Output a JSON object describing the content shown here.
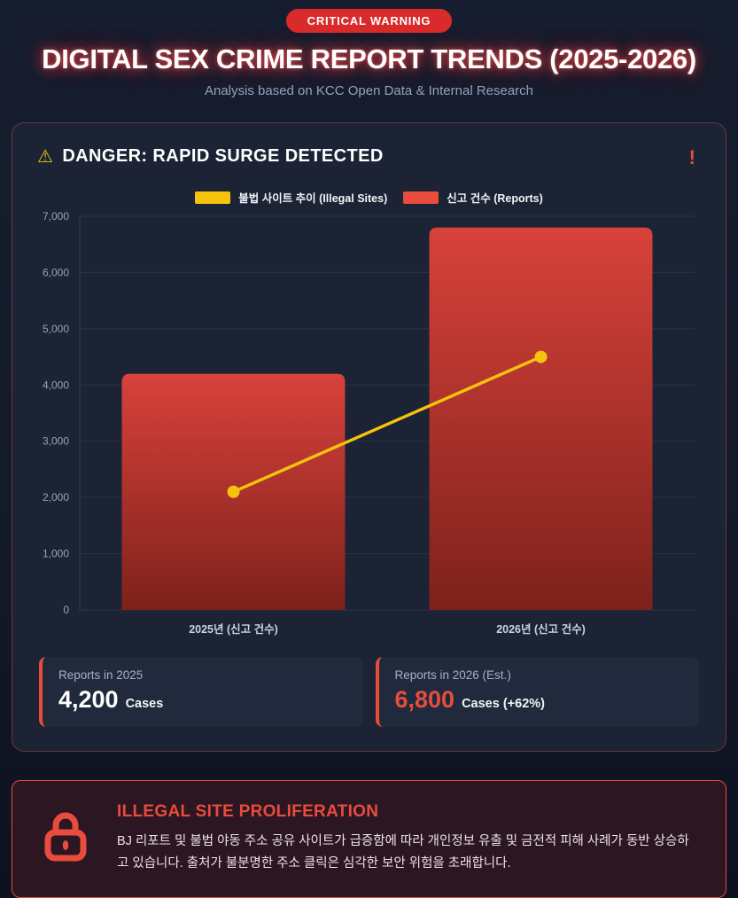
{
  "page": {
    "badge": "CRITICAL WARNING",
    "title": "DIGITAL SEX CRIME REPORT TRENDS (2025-2026)",
    "subtitle": "Analysis based on KCC Open Data & Internal Research"
  },
  "chart_card": {
    "warning_icon": "⚠",
    "header": "DANGER: RAPID SURGE DETECTED",
    "alert_mark": "!"
  },
  "chart_data": {
    "type": "bar",
    "categories": [
      "2025년 (신고 건수)",
      "2026년 (신고 건수)"
    ],
    "series": [
      {
        "name": "신고 건수 (Reports)",
        "type": "bar",
        "values": [
          4200,
          6800
        ],
        "color": "#d8423b",
        "color_dark": "#7e211b"
      },
      {
        "name": "불법 사이트 추이 (Illegal Sites)",
        "type": "line",
        "values": [
          2100,
          4500
        ],
        "color": "#f5c20e"
      }
    ],
    "legend": [
      {
        "label": "불법 사이트 추이 (Illegal Sites)",
        "color": "#f5c20e"
      },
      {
        "label": "신고 건수 (Reports)",
        "color": "#e74c3c"
      }
    ],
    "title": "DANGER: RAPID SURGE DETECTED",
    "xlabel": "",
    "ylabel": "",
    "ylim": [
      0,
      7000
    ],
    "ytick_step": 1000,
    "grid": true,
    "legend_position": "top"
  },
  "stats": [
    {
      "label": "Reports in 2025",
      "value": "4,200",
      "suffix": "Cases",
      "value_color": "#ffffff"
    },
    {
      "label": "Reports in 2026 (Est.)",
      "value": "6,800",
      "suffix": "Cases (+62%)",
      "value_color": "#e74c3c"
    }
  ],
  "alert_card": {
    "title": "ILLEGAL SITE PROLIFERATION",
    "body": "BJ 리포트 및 불법 야동 주소 공유 사이트가 급증함에 따라 개인정보 유출 및 금전적 피해 사례가 동반 상승하고 있습니다. 출처가 불분명한 주소 클릭은 심각한 보안 위험을 초래합니다."
  },
  "colors": {
    "accent_red": "#e74c3c",
    "badge_red": "#d92b2b",
    "bar_gradient_top": "#d8423b",
    "bar_gradient_bottom": "#7e211b",
    "line_yellow": "#f5c20e",
    "page_bg": "#131a2a",
    "card_bg": "#1b2334",
    "axis_text": "#98a3ba",
    "grid_line": "rgba(255,255,255,0.08)"
  }
}
